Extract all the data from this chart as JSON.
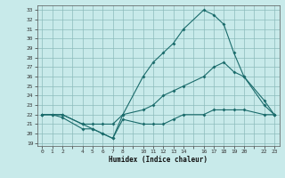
{
  "xlabel": "Humidex (Indice chaleur)",
  "bg_color": "#c8eaea",
  "grid_color": "#8cbcbc",
  "line_color": "#1a6b6b",
  "all_xticks": [
    0,
    1,
    2,
    3,
    4,
    5,
    6,
    7,
    8,
    9,
    10,
    11,
    12,
    13,
    14,
    15,
    16,
    17,
    18,
    19,
    20,
    21,
    22,
    23
  ],
  "labeled_xticks": [
    0,
    1,
    2,
    4,
    5,
    6,
    7,
    8,
    10,
    11,
    12,
    13,
    14,
    16,
    17,
    18,
    19,
    20,
    22,
    23
  ],
  "yticks": [
    19,
    20,
    21,
    22,
    23,
    24,
    25,
    26,
    27,
    28,
    29,
    30,
    31,
    32,
    33
  ],
  "ylim": [
    18.7,
    33.5
  ],
  "xlim": [
    -0.5,
    23.5
  ],
  "line1_x": [
    0,
    1,
    2,
    4,
    5,
    6,
    7,
    8,
    10,
    11,
    12,
    13,
    14,
    16,
    17,
    18,
    19,
    20,
    22,
    23
  ],
  "line1_y": [
    22,
    22,
    21.7,
    20.5,
    20.5,
    20,
    19.5,
    21.5,
    21,
    21,
    21,
    21.5,
    22,
    22,
    22.5,
    22.5,
    22.5,
    22.5,
    22,
    22
  ],
  "line2_x": [
    0,
    1,
    2,
    4,
    5,
    6,
    7,
    8,
    10,
    11,
    12,
    13,
    14,
    16,
    17,
    18,
    19,
    20,
    22,
    23
  ],
  "line2_y": [
    22,
    22,
    22,
    21,
    21,
    21,
    21,
    22,
    22.5,
    23,
    24,
    24.5,
    25,
    26,
    27,
    27.5,
    26.5,
    26,
    23,
    22
  ],
  "line3_x": [
    0,
    2,
    4,
    5,
    6,
    7,
    8,
    10,
    11,
    12,
    13,
    14,
    16,
    17,
    18,
    19,
    20,
    22,
    23
  ],
  "line3_y": [
    22,
    22,
    21,
    20.5,
    20,
    19.5,
    22,
    26,
    27.5,
    28.5,
    29.5,
    31,
    33,
    32.5,
    31.5,
    28.5,
    26,
    23.5,
    22
  ]
}
